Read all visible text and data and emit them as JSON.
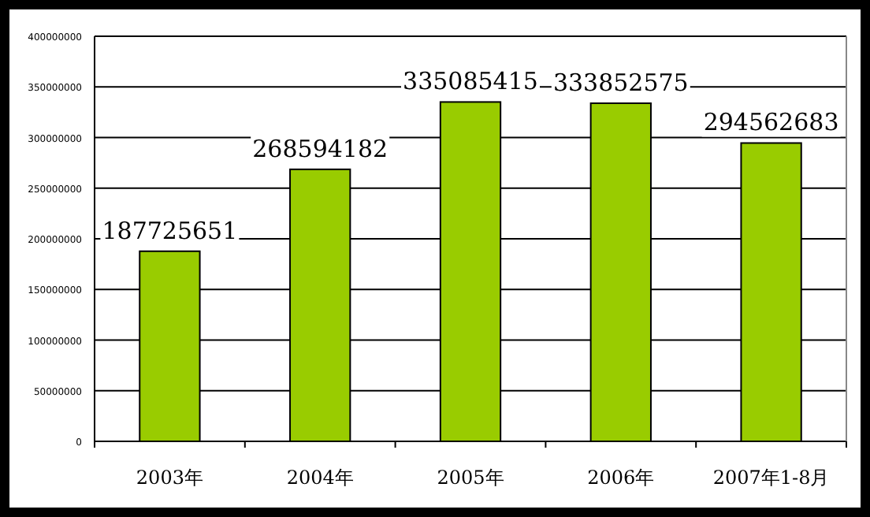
{
  "chart_data": {
    "type": "bar",
    "categories": [
      "2003年",
      "2004年",
      "2005年",
      "2006年",
      "2007年1-8月"
    ],
    "values": [
      187725651,
      268594182,
      335085415,
      333852575,
      294562683
    ],
    "color": "#99cc00",
    "ylim": [
      0,
      400000000
    ],
    "yticks": [
      0,
      50000000,
      100000000,
      150000000,
      200000000,
      250000000,
      300000000,
      350000000,
      400000000
    ],
    "grid": "y",
    "data_labels": true
  }
}
